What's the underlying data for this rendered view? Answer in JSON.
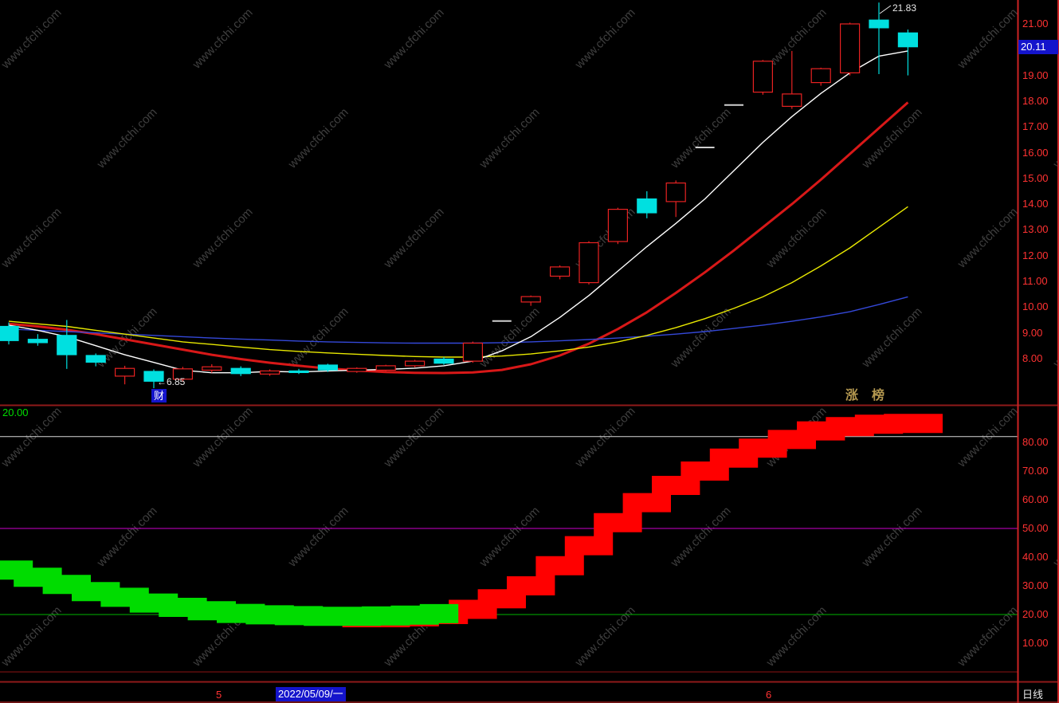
{
  "watermark": {
    "text": "www.cfchi.com",
    "color": "#3f3f3f"
  },
  "colors": {
    "background": "#000000",
    "axis_text": "#ff3232",
    "up_candle": "#e82222",
    "down_candle": "#00e0e0",
    "flat_candle": "#cfcfcf",
    "badge_bg": "#1414cc",
    "marker_gold": "#b49850",
    "band_green": "#00dc00",
    "band_red": "#ff0000",
    "border_dark": "#8f1a1a",
    "border_bright": "#cc2424"
  },
  "top_panel": {
    "annotations": {
      "high_label": "21.83",
      "low_label": "←6.85",
      "last_price": "20.11",
      "marker_cai": "财",
      "marker_zhang": "涨",
      "marker_bang": "榜"
    }
  },
  "bottom_panel": {
    "current_value": "20.00"
  },
  "timeline": {
    "month_left": "5",
    "date_badge": "2022/05/09/一",
    "month_right": "6",
    "period": "日线"
  },
  "chart_data": [
    {
      "type": "candlestick",
      "panel": "main-price-panel",
      "ylim": [
        6.3,
        21.93
      ],
      "y_ticks": [
        21,
        20,
        19,
        18,
        17,
        16,
        15,
        14,
        13,
        12,
        11,
        10,
        9,
        8
      ],
      "grid": false,
      "legend_position": "none",
      "candles": [
        [
          9.25,
          9.4,
          8.55,
          8.7
        ],
        [
          8.75,
          8.95,
          8.5,
          8.62
        ],
        [
          8.9,
          9.5,
          7.6,
          8.15
        ],
        [
          8.12,
          8.2,
          7.7,
          7.86
        ],
        [
          7.32,
          7.72,
          7.0,
          7.62
        ],
        [
          7.5,
          7.58,
          6.85,
          7.12
        ],
        [
          7.2,
          7.68,
          7.1,
          7.6
        ],
        [
          7.55,
          7.78,
          7.45,
          7.68
        ],
        [
          7.62,
          7.7,
          7.32,
          7.42
        ],
        [
          7.4,
          7.58,
          7.33,
          7.52
        ],
        [
          7.52,
          7.6,
          7.4,
          7.46
        ],
        [
          7.75,
          7.8,
          7.48,
          7.56
        ],
        [
          7.5,
          7.66,
          7.45,
          7.62
        ],
        [
          7.55,
          7.76,
          7.5,
          7.72
        ],
        [
          7.72,
          7.95,
          7.66,
          7.9
        ],
        [
          7.98,
          8.06,
          7.76,
          7.82
        ],
        [
          7.9,
          8.66,
          7.84,
          8.6
        ],
        [
          9.46,
          9.46,
          9.46,
          9.46
        ],
        [
          10.2,
          10.45,
          10.05,
          10.41
        ],
        [
          11.2,
          11.62,
          11.08,
          11.56
        ],
        [
          10.95,
          12.56,
          10.88,
          12.5
        ],
        [
          12.55,
          13.86,
          12.45,
          13.8
        ],
        [
          14.2,
          14.5,
          13.45,
          13.66
        ],
        [
          14.1,
          14.92,
          13.5,
          14.82
        ],
        [
          16.2,
          16.2,
          16.2,
          16.2
        ],
        [
          17.85,
          17.85,
          17.85,
          17.85
        ],
        [
          18.35,
          19.6,
          18.25,
          19.55
        ],
        [
          17.8,
          19.95,
          17.7,
          18.28
        ],
        [
          18.72,
          19.3,
          18.6,
          19.26
        ],
        [
          19.1,
          21.05,
          19.0,
          21.0
        ],
        [
          21.15,
          21.83,
          19.05,
          20.85
        ],
        [
          20.65,
          20.78,
          19.0,
          20.11
        ]
      ],
      "flat_indices": [
        17,
        24,
        25
      ],
      "series": [
        {
          "name": "ma-red-line",
          "color": "#d81818",
          "width": 3,
          "values": [
            9.35,
            9.25,
            9.12,
            8.95,
            8.75,
            8.55,
            8.35,
            8.15,
            7.98,
            7.84,
            7.72,
            7.62,
            7.54,
            7.48,
            7.45,
            7.44,
            7.46,
            7.56,
            7.78,
            8.12,
            8.58,
            9.15,
            9.8,
            10.55,
            11.35,
            12.2,
            13.1,
            14.0,
            14.95,
            15.95,
            16.95,
            17.95
          ]
        },
        {
          "name": "ma-blue-line",
          "color": "#3448d8",
          "width": 1.4,
          "values": [
            9.15,
            9.1,
            9.05,
            9.0,
            8.95,
            8.9,
            8.85,
            8.8,
            8.76,
            8.72,
            8.68,
            8.65,
            8.63,
            8.61,
            8.6,
            8.6,
            8.6,
            8.62,
            8.65,
            8.69,
            8.74,
            8.8,
            8.87,
            8.95,
            9.05,
            9.17,
            9.3,
            9.45,
            9.62,
            9.82,
            10.1,
            10.4
          ]
        },
        {
          "name": "ma-yellow-line",
          "color": "#e8e800",
          "width": 1.4,
          "values": [
            9.45,
            9.35,
            9.25,
            9.1,
            8.95,
            8.8,
            8.65,
            8.55,
            8.45,
            8.35,
            8.28,
            8.22,
            8.17,
            8.12,
            8.08,
            8.06,
            8.06,
            8.1,
            8.18,
            8.3,
            8.45,
            8.65,
            8.9,
            9.2,
            9.55,
            9.95,
            10.4,
            10.95,
            11.6,
            12.3,
            13.1,
            13.9
          ]
        },
        {
          "name": "ma-white-line",
          "color": "#ffffff",
          "width": 1.4,
          "values": [
            9.3,
            9.1,
            8.85,
            8.5,
            8.15,
            7.85,
            7.55,
            7.45,
            7.45,
            7.5,
            7.48,
            7.52,
            7.55,
            7.58,
            7.63,
            7.72,
            7.9,
            8.3,
            8.85,
            9.6,
            10.45,
            11.4,
            12.35,
            13.25,
            14.2,
            15.3,
            16.4,
            17.4,
            18.3,
            19.1,
            19.75,
            19.95
          ]
        }
      ]
    },
    {
      "type": "step_band_indicator",
      "panel": "indicator-panel",
      "ylim": [
        0,
        96
      ],
      "y_ticks": [
        80,
        70,
        60,
        50,
        40,
        30,
        20,
        10
      ],
      "grid": false,
      "ref_lines": [
        {
          "value": 82,
          "color": "#d8d8d8"
        },
        {
          "value": 50,
          "color": "#cc00cc"
        },
        {
          "value": 20,
          "color": "#00b400"
        },
        {
          "value": 0,
          "color": "#8b1515"
        }
      ],
      "green_band": {
        "start_index": 0,
        "values": [
          35.5,
          33,
          30.5,
          28,
          26,
          24,
          22.5,
          21.3,
          20.4,
          19.9,
          19.6,
          19.4,
          19.4,
          19.5,
          19.8,
          20.3
        ]
      },
      "red_band": {
        "start_index": 12,
        "values": [
          18.9,
          18.9,
          19.2,
          20.0,
          21.8,
          25.5,
          30,
          37,
          44,
          52,
          59,
          65,
          70,
          74.5,
          78,
          81,
          84,
          85.5,
          86.3,
          86.6
        ],
        "extend_to_x": 1183
      }
    }
  ]
}
